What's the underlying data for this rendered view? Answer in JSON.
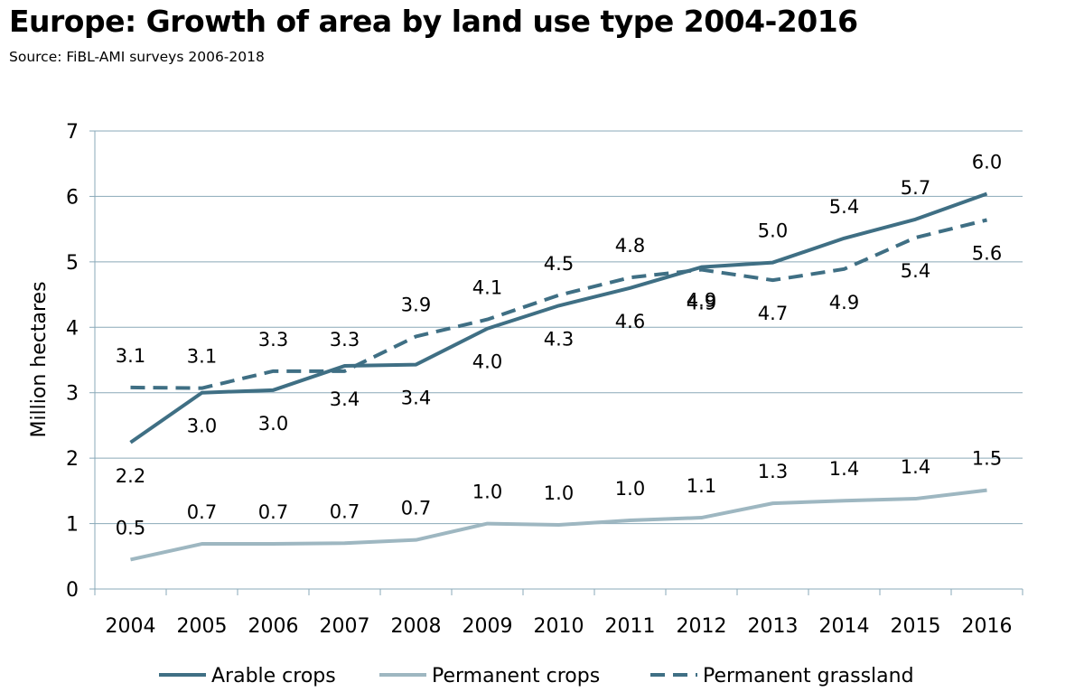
{
  "chart_data": {
    "type": "line",
    "title": "Europe: Growth of area by land use type 2004-2016",
    "subtitle": "Source: FiBL-AMI surveys 2006-2018",
    "xlabel": "",
    "ylabel": "Million hectares",
    "ylim": [
      0,
      7
    ],
    "yticks": [
      "0",
      "1",
      "2",
      "3",
      "4",
      "5",
      "6",
      "7"
    ],
    "grid": true,
    "legend_position": "bottom",
    "categories": [
      "2004",
      "2005",
      "2006",
      "2007",
      "2008",
      "2009",
      "2010",
      "2011",
      "2012",
      "2013",
      "2014",
      "2015",
      "2016"
    ],
    "series": [
      {
        "name": "Arable crops",
        "color": "#3f6f84",
        "style": "solid",
        "values": [
          2.24,
          3.0,
          3.04,
          3.41,
          3.43,
          3.98,
          4.33,
          4.6,
          4.92,
          4.99,
          5.36,
          5.65,
          6.04
        ],
        "labels": [
          "2.2",
          "3.0",
          "3.0",
          "3.4",
          "3.4",
          "4.0",
          "4.3",
          "4.6",
          "4.9",
          "5.0",
          "5.4",
          "5.7",
          "6.0"
        ],
        "label_side": [
          "below",
          "below",
          "below",
          "below",
          "below",
          "below",
          "below",
          "below",
          "below",
          "above",
          "above",
          "above",
          "above"
        ]
      },
      {
        "name": "Permanent crops",
        "color": "#9eb7c1",
        "style": "solid",
        "values": [
          0.45,
          0.69,
          0.69,
          0.7,
          0.75,
          1.0,
          0.98,
          1.05,
          1.09,
          1.31,
          1.35,
          1.38,
          1.51
        ],
        "labels": [
          "0.5",
          "0.7",
          "0.7",
          "0.7",
          "0.7",
          "1.0",
          "1.0",
          "1.0",
          "1.1",
          "1.3",
          "1.4",
          "1.4",
          "1.5"
        ],
        "label_side": [
          "above",
          "above",
          "above",
          "above",
          "above",
          "above",
          "above",
          "above",
          "above",
          "above",
          "above",
          "above",
          "above"
        ]
      },
      {
        "name": "Permanent grassland",
        "color": "#3f6f84",
        "style": "dashed",
        "values": [
          3.08,
          3.07,
          3.33,
          3.33,
          3.86,
          4.12,
          4.49,
          4.76,
          4.88,
          4.72,
          4.89,
          5.37,
          5.64
        ],
        "labels": [
          "3.1",
          "3.1",
          "3.3",
          "3.3",
          "3.9",
          "4.1",
          "4.5",
          "4.8",
          "4.9",
          "4.7",
          "4.9",
          "5.4",
          "5.6"
        ],
        "label_side": [
          "above",
          "above",
          "above",
          "above",
          "above",
          "above",
          "above",
          "above",
          "below",
          "below",
          "below",
          "below",
          "below"
        ]
      }
    ]
  }
}
